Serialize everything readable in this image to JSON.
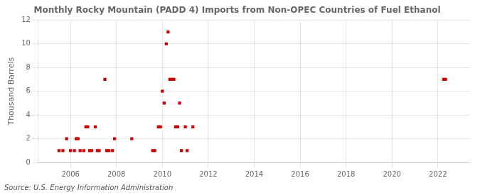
{
  "chart_data": {
    "type": "scatter",
    "title": "Monthly Rocky Mountain (PADD 4) Imports from Non-OPEC Countries of Fuel Ethanol",
    "y_label": "Thousand Barrels",
    "annotations": [
      "Source: U.S. Energy Information Administration"
    ],
    "x": [
      2005.5,
      2005.67,
      2005.83,
      2006.0,
      2006.17,
      2006.25,
      2006.33,
      2006.42,
      2006.58,
      2006.67,
      2006.75,
      2006.83,
      2006.92,
      2007.08,
      2007.17,
      2007.25,
      2007.5,
      2007.58,
      2007.67,
      2007.83,
      2007.92,
      2008.67,
      2009.58,
      2009.67,
      2009.83,
      2009.92,
      2010.0,
      2010.08,
      2010.17,
      2010.25,
      2010.33,
      2010.42,
      2010.5,
      2010.58,
      2010.67,
      2010.75,
      2010.83,
      2011.0,
      2011.08,
      2011.33,
      2022.25,
      2022.33
    ],
    "values": [
      1,
      1,
      2,
      1,
      1,
      2,
      2,
      1,
      1,
      3,
      3,
      1,
      1,
      3,
      1,
      1,
      7,
      1,
      1,
      1,
      2,
      2,
      1,
      1,
      3,
      3,
      6,
      5,
      10,
      11,
      7,
      7,
      7,
      3,
      3,
      5,
      1,
      3,
      1,
      3,
      7,
      7
    ],
    "color": "#cc0000",
    "marker": "square",
    "xlim": [
      2004.6,
      2023.4
    ],
    "ylim": [
      0,
      12
    ],
    "xticks": [
      2006,
      2008,
      2010,
      2012,
      2014,
      2016,
      2018,
      2020,
      2022
    ],
    "yticks": [
      0,
      2,
      4,
      6,
      8,
      10,
      12
    ],
    "grid": true
  }
}
